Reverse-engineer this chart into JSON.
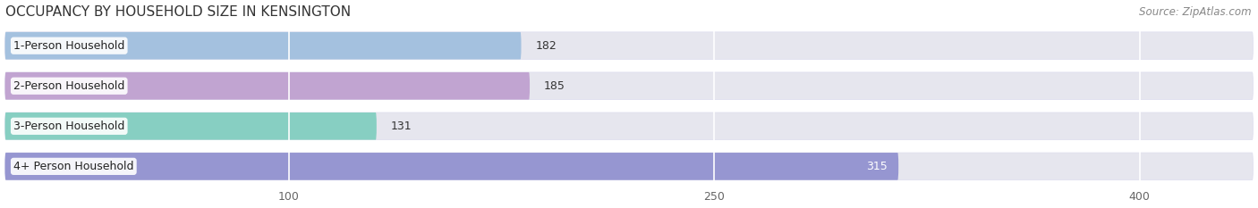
{
  "title": "OCCUPANCY BY HOUSEHOLD SIZE IN KENSINGTON",
  "source": "Source: ZipAtlas.com",
  "categories": [
    "1-Person Household",
    "2-Person Household",
    "3-Person Household",
    "4+ Person Household"
  ],
  "values": [
    182,
    185,
    131,
    315
  ],
  "bar_colors": [
    "#99bbdd",
    "#bb99cc",
    "#77ccbb",
    "#8888cc"
  ],
  "label_colors": [
    "#333333",
    "#333333",
    "#333333",
    "#ffffff"
  ],
  "x_ticks": [
    100,
    250,
    400
  ],
  "xlim_max": 440,
  "background_color": "#f5f5f8",
  "bar_bg_color": "#e6e6ee",
  "title_fontsize": 11,
  "source_fontsize": 8.5,
  "label_fontsize": 9,
  "value_fontsize": 9,
  "tick_fontsize": 9,
  "bar_height": 0.68,
  "bar_gap": 1.0
}
